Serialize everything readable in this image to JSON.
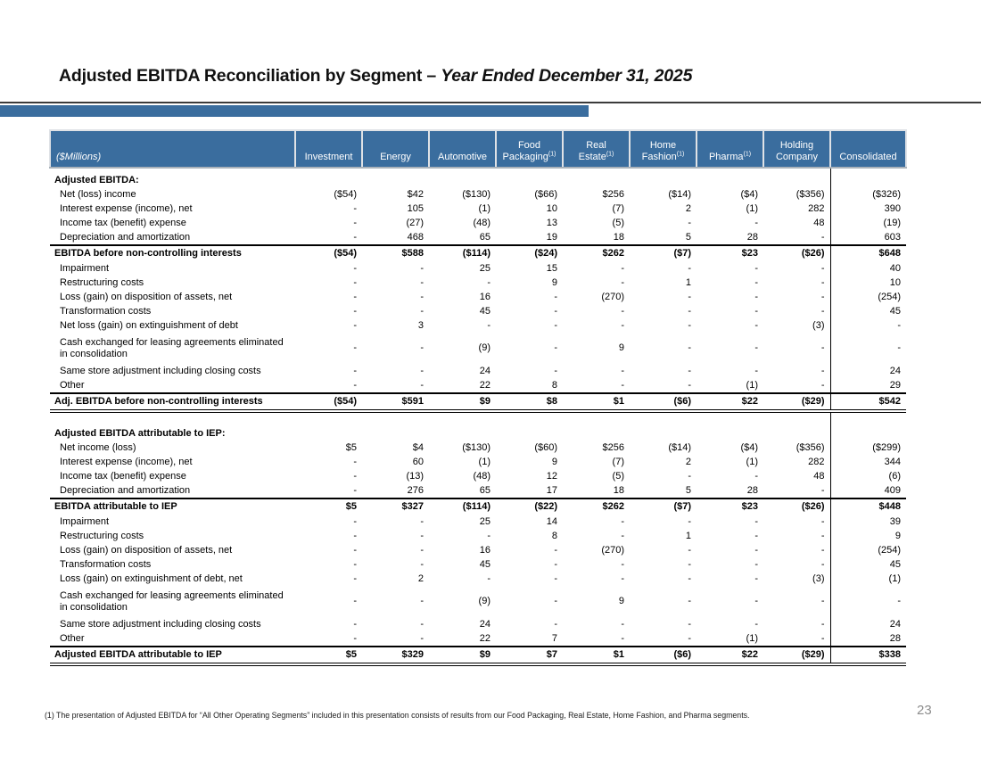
{
  "title": {
    "main": "Adjusted EBITDA Reconciliation by Segment – ",
    "emphasis": "Year Ended December 31, 2025"
  },
  "accent_color": "#3a6d9e",
  "page_number": "23",
  "footnote": "(1) The presentation of Adjusted EBITDA for “All Other Operating Segments” included in this presentation consists of results from our Food Packaging, Real Estate, Home Fashion, and Pharma segments.",
  "table": {
    "unit_label": "($Millions)",
    "columns": [
      {
        "lines": [
          "Investment"
        ],
        "sup": ""
      },
      {
        "lines": [
          "Energy"
        ],
        "sup": ""
      },
      {
        "lines": [
          "Automotive"
        ],
        "sup": ""
      },
      {
        "lines": [
          "Food",
          "Packaging"
        ],
        "sup": "(1)"
      },
      {
        "lines": [
          "Real",
          "Estate"
        ],
        "sup": "(1)"
      },
      {
        "lines": [
          "Home",
          "Fashion"
        ],
        "sup": "(1)"
      },
      {
        "lines": [
          "Pharma"
        ],
        "sup": "(1)"
      },
      {
        "lines": [
          "Holding",
          "Company"
        ],
        "sup": ""
      },
      {
        "lines": [
          "Consolidated"
        ],
        "sup": ""
      }
    ],
    "sections": [
      {
        "header": "Adjusted EBITDA:",
        "rows": [
          {
            "label": "Net (loss) income",
            "type": "normal",
            "values": [
              "($54)",
              "$42",
              "($130)",
              "($66)",
              "$256",
              "($14)",
              "($4)",
              "($356)",
              "($326)"
            ]
          },
          {
            "label": "Interest expense (income), net",
            "type": "normal",
            "values": [
              "-",
              "105",
              "(1)",
              "10",
              "(7)",
              "2",
              "(1)",
              "282",
              "390"
            ]
          },
          {
            "label": "Income tax (benefit) expense",
            "type": "normal",
            "values": [
              "-",
              "(27)",
              "(48)",
              "13",
              "(5)",
              "-",
              "-",
              "48",
              "(19)"
            ]
          },
          {
            "label": "Depreciation and amortization",
            "type": "normal",
            "values": [
              "-",
              "468",
              "65",
              "19",
              "18",
              "5",
              "28",
              "-",
              "603"
            ]
          },
          {
            "label": "EBITDA before non-controlling interests",
            "type": "subtotal",
            "values": [
              "($54)",
              "$588",
              "($114)",
              "($24)",
              "$262",
              "($7)",
              "$23",
              "($26)",
              "$648"
            ]
          },
          {
            "label": "Impairment",
            "type": "normal",
            "values": [
              "-",
              "-",
              "25",
              "15",
              "-",
              "-",
              "-",
              "-",
              "40"
            ]
          },
          {
            "label": "Restructuring costs",
            "type": "normal",
            "values": [
              "-",
              "-",
              "-",
              "9",
              "-",
              "1",
              "-",
              "-",
              "10"
            ]
          },
          {
            "label": "Loss (gain) on disposition of assets, net",
            "type": "normal",
            "values": [
              "-",
              "-",
              "16",
              "-",
              "(270)",
              "-",
              "-",
              "-",
              "(254)"
            ]
          },
          {
            "label": "Transformation costs",
            "type": "normal",
            "values": [
              "-",
              "-",
              "45",
              "-",
              "-",
              "-",
              "-",
              "-",
              "45"
            ]
          },
          {
            "label": "Net loss (gain) on extinguishment of debt",
            "type": "normal",
            "values": [
              "-",
              "3",
              "-",
              "-",
              "-",
              "-",
              "-",
              "(3)",
              "-"
            ]
          },
          {
            "label": "Cash exchanged for leasing agreements eliminated\nin consolidation",
            "type": "normal",
            "values": [
              "-",
              "-",
              "(9)",
              "-",
              "9",
              "-",
              "-",
              "-",
              "-"
            ]
          },
          {
            "label": "Same store adjustment including closing costs",
            "type": "normal",
            "values": [
              "-",
              "-",
              "24",
              "-",
              "-",
              "-",
              "-",
              "-",
              "24"
            ]
          },
          {
            "label": "Other",
            "type": "normal",
            "values": [
              "-",
              "-",
              "22",
              "8",
              "-",
              "-",
              "(1)",
              "-",
              "29"
            ]
          },
          {
            "label": "Adj. EBITDA before non-controlling interests",
            "type": "total",
            "values": [
              "($54)",
              "$591",
              "$9",
              "$8",
              "$1",
              "($6)",
              "$22",
              "($29)",
              "$542"
            ]
          }
        ]
      },
      {
        "header": "Adjusted EBITDA attributable to IEP:",
        "rows": [
          {
            "label": "Net income (loss)",
            "type": "normal",
            "values": [
              "$5",
              "$4",
              "($130)",
              "($60)",
              "$256",
              "($14)",
              "($4)",
              "($356)",
              "($299)"
            ]
          },
          {
            "label": "Interest expense (income), net",
            "type": "normal",
            "values": [
              "-",
              "60",
              "(1)",
              "9",
              "(7)",
              "2",
              "(1)",
              "282",
              "344"
            ]
          },
          {
            "label": "Income tax (benefit) expense",
            "type": "normal",
            "values": [
              "-",
              "(13)",
              "(48)",
              "12",
              "(5)",
              "-",
              "-",
              "48",
              "(6)"
            ]
          },
          {
            "label": "Depreciation and amortization",
            "type": "normal",
            "values": [
              "-",
              "276",
              "65",
              "17",
              "18",
              "5",
              "28",
              "-",
              "409"
            ]
          },
          {
            "label": "EBITDA attributable to IEP",
            "type": "subtotal",
            "values": [
              "$5",
              "$327",
              "($114)",
              "($22)",
              "$262",
              "($7)",
              "$23",
              "($26)",
              "$448"
            ]
          },
          {
            "label": "Impairment",
            "type": "normal",
            "values": [
              "-",
              "-",
              "25",
              "14",
              "-",
              "-",
              "-",
              "-",
              "39"
            ]
          },
          {
            "label": "Restructuring costs",
            "type": "normal",
            "values": [
              "-",
              "-",
              "-",
              "8",
              "-",
              "1",
              "-",
              "-",
              "9"
            ]
          },
          {
            "label": "Loss (gain) on disposition of assets, net",
            "type": "normal",
            "values": [
              "-",
              "-",
              "16",
              "-",
              "(270)",
              "-",
              "-",
              "-",
              "(254)"
            ]
          },
          {
            "label": "Transformation costs",
            "type": "normal",
            "values": [
              "-",
              "-",
              "45",
              "-",
              "-",
              "-",
              "-",
              "-",
              "45"
            ]
          },
          {
            "label": "Loss (gain) on extinguishment of debt, net",
            "type": "normal",
            "values": [
              "-",
              "2",
              "-",
              "-",
              "-",
              "-",
              "-",
              "(3)",
              "(1)"
            ]
          },
          {
            "label": "Cash exchanged for leasing agreements eliminated\nin consolidation",
            "type": "normal",
            "values": [
              "-",
              "-",
              "(9)",
              "-",
              "9",
              "-",
              "-",
              "-",
              "-"
            ]
          },
          {
            "label": "Same store adjustment including closing costs",
            "type": "normal",
            "values": [
              "-",
              "-",
              "24",
              "-",
              "-",
              "-",
              "-",
              "-",
              "24"
            ]
          },
          {
            "label": "Other",
            "type": "normal",
            "values": [
              "-",
              "-",
              "22",
              "7",
              "-",
              "-",
              "(1)",
              "-",
              "28"
            ]
          },
          {
            "label": "Adjusted EBITDA attributable to IEP",
            "type": "total",
            "values": [
              "$5",
              "$329",
              "$9",
              "$7",
              "$1",
              "($6)",
              "$22",
              "($29)",
              "$338"
            ]
          }
        ]
      }
    ]
  }
}
